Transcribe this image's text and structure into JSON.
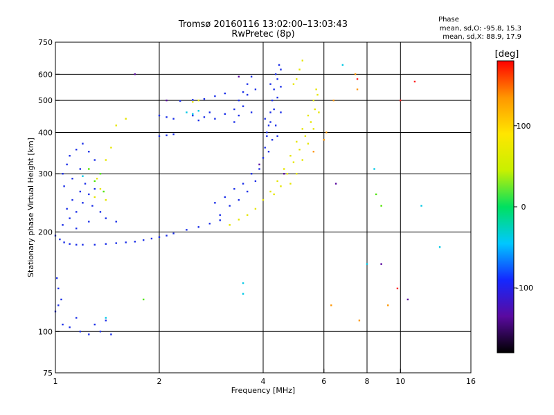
{
  "chart_data": {
    "type": "scatter",
    "title": "Tromsø 20160116 13:02:00–13:03:43",
    "subtitle": "RwPretec (8p)",
    "xlabel": "Frequency [MHz]",
    "ylabel": "Stationary phase Virtual Height [km]",
    "x_scale": "log",
    "y_scale": "log",
    "xlim": [
      1,
      16
    ],
    "ylim": [
      75,
      750
    ],
    "x_ticks": [
      1,
      2,
      4,
      6,
      8,
      10,
      16
    ],
    "y_ticks": [
      75,
      100,
      200,
      300,
      400,
      500,
      600,
      750
    ],
    "x_grid": [
      2,
      4,
      6,
      8,
      10
    ],
    "y_grid": [
      100,
      200,
      300,
      400,
      500,
      600
    ],
    "stats": {
      "heading": "Phase",
      "line_o": "mean, sd,O: -95.8, 15.3",
      "line_x": "mean, sd,X:  88.9, 17.9"
    },
    "colorbar": {
      "label": "[deg]",
      "ticks": [
        100,
        0,
        -100
      ],
      "range": [
        -180,
        180
      ],
      "colors": [
        "#000000",
        "#5a0aa0",
        "#1428ff",
        "#00c8ff",
        "#00e060",
        "#c8f000",
        "#ffe600",
        "#ff9600",
        "#ff0000"
      ]
    },
    "series": [
      {
        "phase": -100,
        "color": "#1a2ee8",
        "points": [
          [
            1.0,
            195
          ],
          [
            1.03,
            190
          ],
          [
            1.06,
            186
          ],
          [
            1.1,
            184
          ],
          [
            1.15,
            183
          ],
          [
            1.2,
            183
          ],
          [
            1.3,
            183
          ],
          [
            1.4,
            184
          ],
          [
            1.5,
            185
          ],
          [
            1.6,
            186
          ],
          [
            1.7,
            187
          ],
          [
            1.8,
            189
          ],
          [
            1.9,
            191
          ],
          [
            2.0,
            193
          ],
          [
            2.1,
            195
          ],
          [
            2.2,
            198
          ],
          [
            2.4,
            203
          ],
          [
            2.6,
            207
          ],
          [
            2.8,
            212
          ],
          [
            3.0,
            217
          ],
          [
            1.05,
            210
          ],
          [
            1.1,
            220
          ],
          [
            1.15,
            230
          ],
          [
            1.2,
            245
          ],
          [
            1.25,
            260
          ],
          [
            1.3,
            270
          ],
          [
            1.12,
            250
          ],
          [
            1.18,
            265
          ],
          [
            1.22,
            280
          ],
          [
            1.28,
            240
          ],
          [
            1.35,
            230
          ],
          [
            1.4,
            220
          ],
          [
            1.5,
            215
          ],
          [
            1.08,
            235
          ],
          [
            1.15,
            205
          ],
          [
            1.25,
            215
          ],
          [
            1.05,
            300
          ],
          [
            1.08,
            320
          ],
          [
            1.1,
            340
          ],
          [
            1.15,
            355
          ],
          [
            1.2,
            370
          ],
          [
            1.25,
            350
          ],
          [
            1.3,
            330
          ],
          [
            1.18,
            310
          ],
          [
            1.12,
            290
          ],
          [
            1.06,
            275
          ],
          [
            1.0,
            115
          ],
          [
            1.02,
            120
          ],
          [
            1.04,
            125
          ],
          [
            1.02,
            135
          ],
          [
            1.01,
            145
          ],
          [
            1.05,
            105
          ],
          [
            1.1,
            103
          ],
          [
            1.18,
            100
          ],
          [
            1.25,
            98
          ],
          [
            1.35,
            100
          ],
          [
            1.45,
            98
          ],
          [
            1.4,
            108
          ],
          [
            1.3,
            105
          ],
          [
            1.15,
            110
          ],
          [
            2.0,
            450
          ],
          [
            2.1,
            445
          ],
          [
            2.2,
            440
          ],
          [
            2.0,
            390
          ],
          [
            2.1,
            392
          ],
          [
            2.2,
            395
          ],
          [
            2.3,
            498
          ],
          [
            2.5,
            502
          ],
          [
            2.7,
            505
          ],
          [
            2.9,
            515
          ],
          [
            3.1,
            525
          ],
          [
            2.5,
            450
          ],
          [
            2.7,
            445
          ],
          [
            2.9,
            440
          ],
          [
            3.1,
            455
          ],
          [
            2.6,
            435
          ],
          [
            2.8,
            460
          ],
          [
            3.3,
            470
          ],
          [
            3.4,
            500
          ],
          [
            3.5,
            530
          ],
          [
            3.6,
            560
          ],
          [
            3.7,
            590
          ],
          [
            3.4,
            450
          ],
          [
            3.5,
            480
          ],
          [
            3.6,
            520
          ],
          [
            3.7,
            460
          ],
          [
            3.8,
            540
          ],
          [
            3.3,
            430
          ],
          [
            3.0,
            225
          ],
          [
            3.2,
            240
          ],
          [
            3.4,
            250
          ],
          [
            3.6,
            265
          ],
          [
            3.8,
            285
          ],
          [
            3.9,
            310
          ],
          [
            4.0,
            335
          ],
          [
            4.05,
            360
          ],
          [
            4.1,
            390
          ],
          [
            4.15,
            420
          ],
          [
            4.2,
            460
          ],
          [
            4.25,
            500
          ],
          [
            4.3,
            540
          ],
          [
            4.4,
            580
          ],
          [
            4.5,
            620
          ],
          [
            4.1,
            400
          ],
          [
            4.2,
            430
          ],
          [
            4.3,
            470
          ],
          [
            4.4,
            510
          ],
          [
            4.5,
            550
          ],
          [
            4.35,
            600
          ],
          [
            4.45,
            640
          ],
          [
            4.15,
            350
          ],
          [
            4.25,
            380
          ],
          [
            4.35,
            420
          ],
          [
            4.5,
            460
          ],
          [
            4.05,
            440
          ],
          [
            4.2,
            560
          ],
          [
            4.4,
            390
          ],
          [
            3.7,
            300
          ],
          [
            3.5,
            280
          ],
          [
            3.3,
            270
          ],
          [
            3.1,
            255
          ],
          [
            2.9,
            245
          ]
        ]
      },
      {
        "phase": 100,
        "color": "#e6e600",
        "points": [
          [
            3.2,
            210
          ],
          [
            3.4,
            218
          ],
          [
            3.6,
            225
          ],
          [
            3.8,
            235
          ],
          [
            4.0,
            250
          ],
          [
            4.2,
            265
          ],
          [
            4.4,
            285
          ],
          [
            4.6,
            310
          ],
          [
            4.8,
            340
          ],
          [
            5.0,
            375
          ],
          [
            5.2,
            410
          ],
          [
            5.4,
            450
          ],
          [
            5.6,
            500
          ],
          [
            5.7,
            540
          ],
          [
            4.3,
            260
          ],
          [
            4.5,
            275
          ],
          [
            4.7,
            300
          ],
          [
            4.9,
            325
          ],
          [
            5.1,
            355
          ],
          [
            5.3,
            390
          ],
          [
            5.5,
            430
          ],
          [
            5.65,
            470
          ],
          [
            5.75,
            520
          ],
          [
            4.8,
            280
          ],
          [
            5.0,
            300
          ],
          [
            5.2,
            330
          ],
          [
            5.4,
            370
          ],
          [
            5.6,
            410
          ],
          [
            5.8,
            460
          ],
          [
            5.0,
            580
          ],
          [
            5.1,
            620
          ],
          [
            5.2,
            660
          ],
          [
            4.9,
            560
          ],
          [
            1.3,
            255
          ],
          [
            1.35,
            270
          ],
          [
            1.4,
            250
          ],
          [
            1.32,
            290
          ],
          [
            1.4,
            330
          ],
          [
            1.45,
            360
          ],
          [
            1.5,
            420
          ],
          [
            1.6,
            440
          ],
          [
            2.5,
            495
          ],
          [
            2.6,
            500
          ]
        ]
      },
      {
        "phase": 0,
        "color": "#00c8e6",
        "points": [
          [
            2.4,
            460
          ],
          [
            2.5,
            455
          ],
          [
            2.6,
            465
          ],
          [
            3.5,
            130
          ],
          [
            3.5,
            140
          ],
          [
            6.8,
            640
          ],
          [
            8.4,
            310
          ],
          [
            8.0,
            160
          ],
          [
            11.5,
            240
          ],
          [
            13.0,
            180
          ],
          [
            1.4,
            110
          ],
          [
            1.2,
            295
          ]
        ]
      },
      {
        "phase": 50,
        "color": "#50e600",
        "points": [
          [
            1.3,
            285
          ],
          [
            1.35,
            300
          ],
          [
            1.38,
            265
          ],
          [
            1.25,
            310
          ],
          [
            8.5,
            260
          ],
          [
            8.8,
            240
          ],
          [
            1.8,
            125
          ]
        ]
      },
      {
        "phase": -170,
        "color": "#5a0aa0",
        "points": [
          [
            1.7,
            600
          ],
          [
            2.1,
            500
          ],
          [
            3.4,
            590
          ],
          [
            6.5,
            280
          ],
          [
            8.8,
            160
          ],
          [
            10.5,
            125
          ],
          [
            3.9,
            320
          ],
          [
            4.6,
            300
          ]
        ]
      },
      {
        "phase": 150,
        "color": "#ff9600",
        "points": [
          [
            6.1,
            400
          ],
          [
            7.4,
            600
          ],
          [
            7.5,
            540
          ],
          [
            6.3,
            120
          ],
          [
            7.6,
            108
          ],
          [
            9.2,
            120
          ],
          [
            5.6,
            350
          ],
          [
            6.0,
            380
          ],
          [
            6.4,
            500
          ]
        ]
      },
      {
        "phase": 180,
        "color": "#ff1e1e",
        "points": [
          [
            7.5,
            580
          ],
          [
            9.8,
            135
          ],
          [
            11.0,
            570
          ],
          [
            10.0,
            500
          ]
        ]
      }
    ]
  }
}
